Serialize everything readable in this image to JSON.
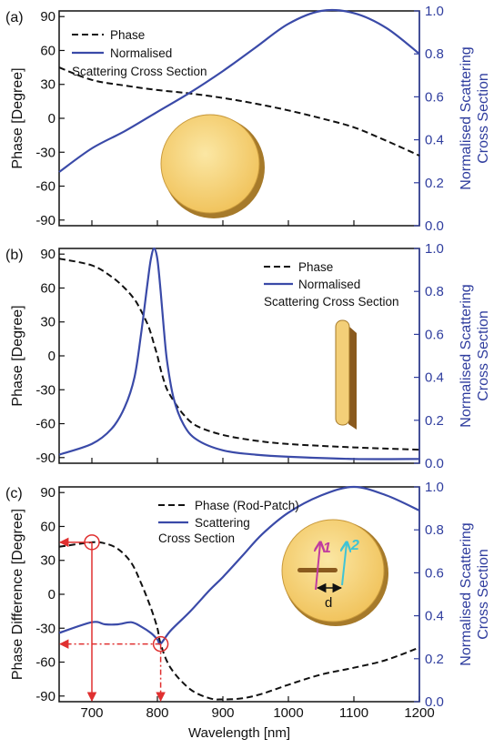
{
  "colors": {
    "phase": "#111111",
    "scattering": "#3a4aa8",
    "right_axis": "#2f3d9e",
    "arrow": "#e03030",
    "disk": "#f4cf6a",
    "disk_edge": "#a67a2a",
    "vec1": "#c03ca0",
    "vec2": "#3fc4d6"
  },
  "xlabel": "Wavelength [nm]",
  "xticks": [
    "700",
    "800",
    "900",
    "1000",
    "1100",
    "1200"
  ],
  "panels": [
    {
      "label": "(a)",
      "ylabel_left": "Phase [Degree]",
      "ylabel_right": [
        "Normalised Scattering",
        "Cross Section"
      ],
      "legend": {
        "phase": [
          "Phase"
        ],
        "scattering": [
          "Normalised",
          "Scattering Cross Section"
        ]
      },
      "inset": "disk-icon"
    },
    {
      "label": "(b)",
      "ylabel_left": "Phase [Degree]",
      "ylabel_right": [
        "Normalised Scattering",
        "Cross Section"
      ],
      "legend": {
        "phase": [
          "Phase"
        ],
        "scattering": [
          "Normalised",
          "Scattering Cross Section"
        ]
      },
      "inset": "rod-icon"
    },
    {
      "label": "(c)",
      "ylabel_left": "Phase Difference [Degree]",
      "ylabel_right": [
        "Normalised Scattering",
        "Cross Section"
      ],
      "legend": {
        "phase": [
          "Phase (Rod-Patch)"
        ],
        "scattering": [
          "Scattering",
          "Cross Section"
        ]
      },
      "inset": "rod-patch-icon",
      "inset_labels": {
        "v1": "1",
        "v2": "2",
        "d": "d"
      },
      "markers": [
        {
          "x": 700,
          "phase": 46
        },
        {
          "x": 805,
          "phase": -44
        }
      ]
    }
  ],
  "chart_data": [
    {
      "type": "line",
      "xlim": [
        650,
        1200
      ],
      "ylim_left": [
        -95,
        95
      ],
      "ylim_right": [
        0,
        1
      ],
      "left_ticks": [
        90,
        60,
        30,
        0,
        -30,
        -60,
        -90
      ],
      "right_ticks": [
        1.0,
        0.8,
        0.6,
        0.4,
        0.2,
        0.0
      ],
      "x": [
        650,
        700,
        750,
        800,
        850,
        900,
        950,
        1000,
        1050,
        1100,
        1150,
        1200
      ],
      "series": [
        {
          "name": "Phase",
          "axis": "left",
          "style": "dashed",
          "values": [
            45,
            34,
            29,
            25,
            22,
            18,
            13,
            7,
            0,
            -8,
            -20,
            -33
          ]
        },
        {
          "name": "Normalised Scattering Cross Section",
          "axis": "right",
          "style": "solid",
          "values": [
            0.25,
            0.36,
            0.44,
            0.53,
            0.62,
            0.72,
            0.83,
            0.94,
            1.0,
            0.99,
            0.92,
            0.8
          ]
        }
      ]
    },
    {
      "type": "line",
      "xlim": [
        650,
        1200
      ],
      "ylim_left": [
        -95,
        95
      ],
      "ylim_right": [
        0,
        1
      ],
      "left_ticks": [
        90,
        60,
        30,
        0,
        -30,
        -60,
        -90
      ],
      "right_ticks": [
        1.0,
        0.8,
        0.6,
        0.4,
        0.2,
        0.0
      ],
      "x": [
        650,
        700,
        730,
        750,
        765,
        775,
        785,
        790,
        795,
        800,
        805,
        810,
        815,
        825,
        840,
        860,
        900,
        950,
        1000,
        1100,
        1200
      ],
      "series": [
        {
          "name": "Phase",
          "axis": "left",
          "style": "dashed",
          "values": [
            86,
            80,
            70,
            60,
            50,
            40,
            28,
            20,
            10,
            0,
            -12,
            -22,
            -30,
            -40,
            -52,
            -62,
            -70,
            -75,
            -78,
            -81,
            -83
          ]
        },
        {
          "name": "Normalised Scattering Cross Section",
          "axis": "right",
          "style": "solid",
          "values": [
            0.04,
            0.09,
            0.16,
            0.26,
            0.4,
            0.6,
            0.84,
            0.95,
            1.0,
            0.95,
            0.8,
            0.62,
            0.47,
            0.3,
            0.18,
            0.11,
            0.06,
            0.04,
            0.03,
            0.02,
            0.02
          ]
        }
      ]
    },
    {
      "type": "line",
      "xlim": [
        650,
        1200
      ],
      "ylim_left": [
        -95,
        95
      ],
      "ylim_right": [
        0,
        1
      ],
      "left_ticks": [
        90,
        60,
        30,
        0,
        -30,
        -60,
        -90
      ],
      "right_ticks": [
        1.0,
        0.8,
        0.6,
        0.4,
        0.2,
        0.0
      ],
      "x": [
        650,
        700,
        720,
        740,
        760,
        775,
        790,
        800,
        805,
        820,
        850,
        880,
        900,
        930,
        960,
        1000,
        1050,
        1100,
        1150,
        1200
      ],
      "series": [
        {
          "name": "Phase (Rod-Patch)",
          "axis": "left",
          "style": "dashed",
          "values": [
            42,
            46,
            45,
            40,
            28,
            10,
            -12,
            -30,
            -44,
            -65,
            -84,
            -92,
            -93,
            -92,
            -88,
            -80,
            -71,
            -65,
            -58,
            -47
          ]
        },
        {
          "name": "Scattering Cross Section",
          "axis": "right",
          "style": "solid",
          "values": [
            0.32,
            0.37,
            0.36,
            0.36,
            0.37,
            0.35,
            0.32,
            0.29,
            0.27,
            0.33,
            0.42,
            0.52,
            0.58,
            0.68,
            0.78,
            0.88,
            0.96,
            1.0,
            0.96,
            0.89
          ]
        }
      ]
    }
  ]
}
